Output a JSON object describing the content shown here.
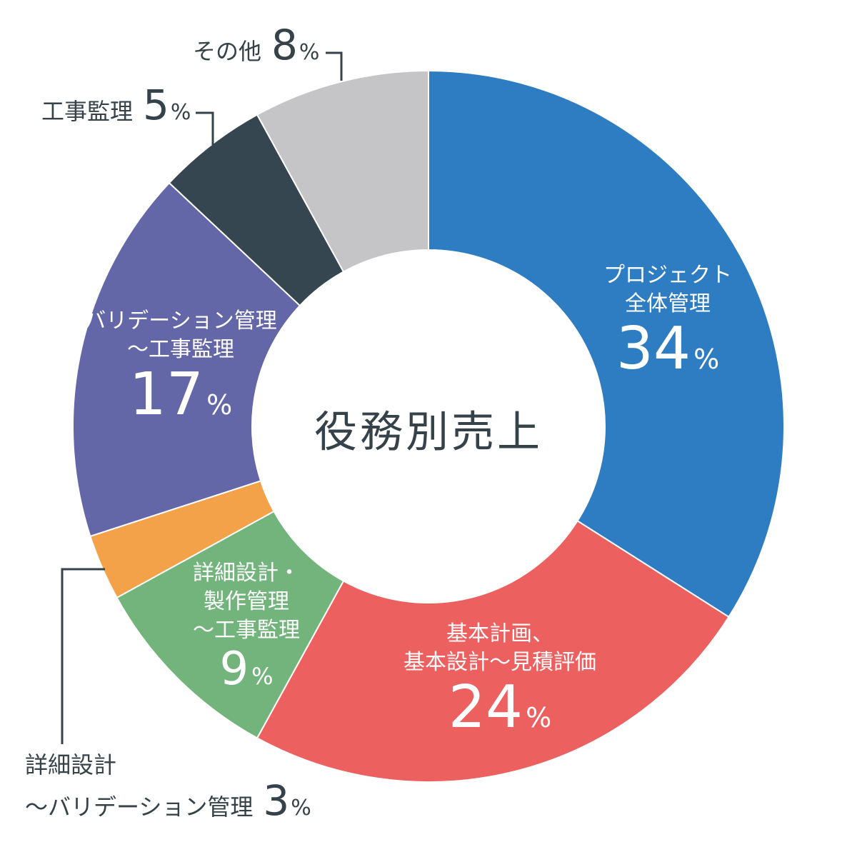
{
  "title": "役務別売上",
  "colors": {
    "background": "#ffffff",
    "text": "#36424a",
    "leader_line": "#36424a",
    "segment_divider": "#ffffff"
  },
  "chart_data": {
    "type": "pie",
    "donut": true,
    "title": "役務別売上",
    "unit": "%",
    "start_angle_deg": 0,
    "direction": "clockwise",
    "total": 100,
    "legend_position": "none",
    "segments": [
      {
        "name": "プロジェクト全体管理",
        "label_lines": [
          "プロジェクト",
          "全体管理"
        ],
        "value": 34,
        "color": "#2e7dc2",
        "label_placement": "inside"
      },
      {
        "name": "基本計画、基本設計〜見積評価",
        "label_lines": [
          "基本計画、",
          "基本設計〜見積評価"
        ],
        "value": 24,
        "color": "#ed6060",
        "label_placement": "inside"
      },
      {
        "name": "詳細設計・製作管理〜工事監理",
        "label_lines": [
          "詳細設計・",
          "製作管理",
          "〜工事監理"
        ],
        "value": 9,
        "color": "#72b47c",
        "label_placement": "inside"
      },
      {
        "name": "詳細設計〜バリデーション管理",
        "label_lines": [
          "詳細設計",
          "〜バリデーション管理"
        ],
        "value": 3,
        "color": "#f3a24a",
        "label_placement": "outside"
      },
      {
        "name": "バリデーション管理〜工事監理",
        "label_lines": [
          "バリデーション管理",
          "〜工事監理"
        ],
        "value": 17,
        "color": "#6467a7",
        "label_placement": "inside"
      },
      {
        "name": "工事監理",
        "label_lines": [
          "工事監理"
        ],
        "value": 5,
        "color": "#364650",
        "label_placement": "outside"
      },
      {
        "name": "その他",
        "label_lines": [
          "その他"
        ],
        "value": 8,
        "color": "#c5c5c7",
        "label_placement": "outside"
      }
    ]
  }
}
